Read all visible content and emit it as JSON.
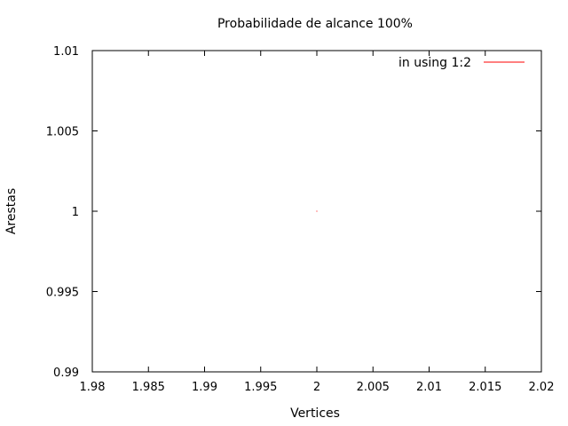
{
  "chart_data": {
    "type": "line",
    "title": "Probabilidade de alcance 100%",
    "xlabel": "Vertices",
    "ylabel": "Arestas",
    "xlim": [
      1.98,
      2.02
    ],
    "ylim": [
      0.99,
      1.01
    ],
    "x_ticks": [
      1.98,
      1.985,
      1.99,
      1.995,
      2,
      2.005,
      2.01,
      2.015,
      2.02
    ],
    "x_tick_labels": [
      "1.98",
      "1.985",
      "1.99",
      "1.995",
      "2",
      "2.005",
      "2.01",
      "2.015",
      "2.02"
    ],
    "y_ticks": [
      0.99,
      0.995,
      1,
      1.005,
      1.01
    ],
    "y_tick_labels": [
      "0.99",
      "0.995",
      "1",
      "1.005",
      "1.01"
    ],
    "grid": false,
    "legend_position": "top-right",
    "series": [
      {
        "name": "in using 1:2",
        "color": "#ff0000",
        "x": [
          2
        ],
        "y": [
          1
        ]
      }
    ]
  }
}
